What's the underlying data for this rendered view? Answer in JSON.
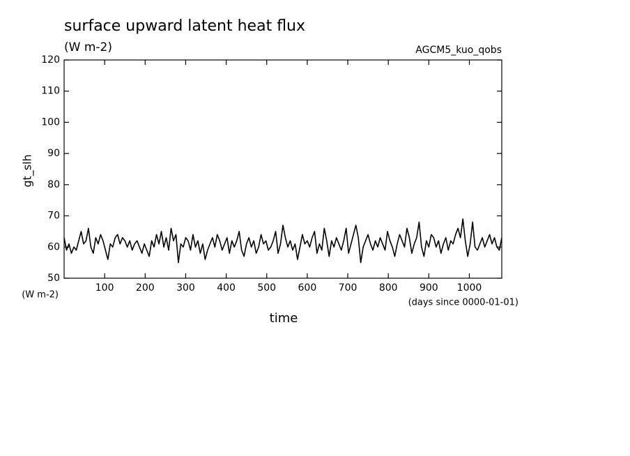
{
  "chart_data": {
    "type": "line",
    "title": "surface upward latent heat flux",
    "subtitle": "(W m-2)",
    "annotation": "AGCM5_kuo_qobs",
    "y_label": "gt_slh",
    "y_unit": "(W m-2)",
    "x_label": "time",
    "x_unit": "(days since 0000-01-01)",
    "color": "#000000",
    "xlim": [
      0,
      1080
    ],
    "ylim": [
      50,
      120
    ],
    "xticks": [
      100,
      200,
      300,
      400,
      500,
      600,
      700,
      800,
      900,
      1000
    ],
    "yticks": [
      50,
      60,
      70,
      80,
      90,
      100,
      110,
      120
    ],
    "x": [
      0,
      6,
      12,
      18,
      24,
      30,
      36,
      42,
      48,
      54,
      60,
      66,
      72,
      78,
      84,
      90,
      96,
      102,
      108,
      114,
      120,
      126,
      132,
      138,
      144,
      150,
      156,
      162,
      168,
      174,
      180,
      186,
      192,
      198,
      204,
      210,
      216,
      222,
      228,
      234,
      240,
      246,
      252,
      258,
      264,
      270,
      276,
      282,
      288,
      294,
      300,
      306,
      312,
      318,
      324,
      330,
      336,
      342,
      348,
      354,
      360,
      366,
      372,
      378,
      384,
      390,
      396,
      402,
      408,
      414,
      420,
      426,
      432,
      438,
      444,
      450,
      456,
      462,
      468,
      474,
      480,
      486,
      492,
      498,
      504,
      510,
      516,
      522,
      528,
      534,
      540,
      546,
      552,
      558,
      564,
      570,
      576,
      582,
      588,
      594,
      600,
      606,
      612,
      618,
      624,
      630,
      636,
      642,
      648,
      654,
      660,
      666,
      672,
      678,
      684,
      690,
      696,
      702,
      708,
      714,
      720,
      726,
      732,
      738,
      744,
      750,
      756,
      762,
      768,
      774,
      780,
      786,
      792,
      798,
      804,
      810,
      816,
      822,
      828,
      834,
      840,
      846,
      852,
      858,
      864,
      870,
      876,
      882,
      888,
      894,
      900,
      906,
      912,
      918,
      924,
      930,
      936,
      942,
      948,
      954,
      960,
      966,
      972,
      978,
      984,
      990,
      996,
      1002,
      1008,
      1014,
      1020,
      1026,
      1032,
      1038,
      1044,
      1050,
      1056,
      1062,
      1068,
      1074,
      1080
    ],
    "values": [
      63,
      59,
      61,
      58,
      60,
      59,
      62,
      65,
      61,
      62,
      66,
      60,
      58,
      63,
      61,
      64,
      62,
      59,
      56,
      61,
      60,
      63,
      64,
      61,
      63,
      62,
      60,
      62,
      59,
      61,
      62,
      60,
      58,
      61,
      59,
      57,
      62,
      60,
      64,
      61,
      65,
      60,
      63,
      59,
      66,
      62,
      64,
      55,
      61,
      60,
      63,
      62,
      59,
      64,
      60,
      62,
      58,
      61,
      56,
      59,
      61,
      63,
      60,
      64,
      62,
      59,
      61,
      63,
      58,
      62,
      60,
      62,
      65,
      59,
      57,
      61,
      63,
      60,
      62,
      58,
      60,
      64,
      61,
      62,
      59,
      60,
      62,
      65,
      58,
      61,
      67,
      63,
      60,
      62,
      59,
      61,
      56,
      60,
      64,
      61,
      62,
      60,
      63,
      65,
      58,
      61,
      59,
      66,
      62,
      57,
      62,
      60,
      63,
      61,
      59,
      62,
      66,
      58,
      61,
      64,
      67,
      63,
      55,
      60,
      62,
      64,
      61,
      59,
      62,
      60,
      63,
      61,
      59,
      65,
      62,
      60,
      57,
      61,
      64,
      62,
      60,
      66,
      63,
      58,
      61,
      63,
      68,
      60,
      57,
      62,
      60,
      64,
      63,
      60,
      62,
      58,
      61,
      63,
      59,
      62,
      61,
      64,
      66,
      63,
      69,
      62,
      57,
      61,
      68,
      60,
      59,
      61,
      63,
      60,
      62,
      64,
      61,
      63,
      60,
      59,
      63
    ]
  }
}
